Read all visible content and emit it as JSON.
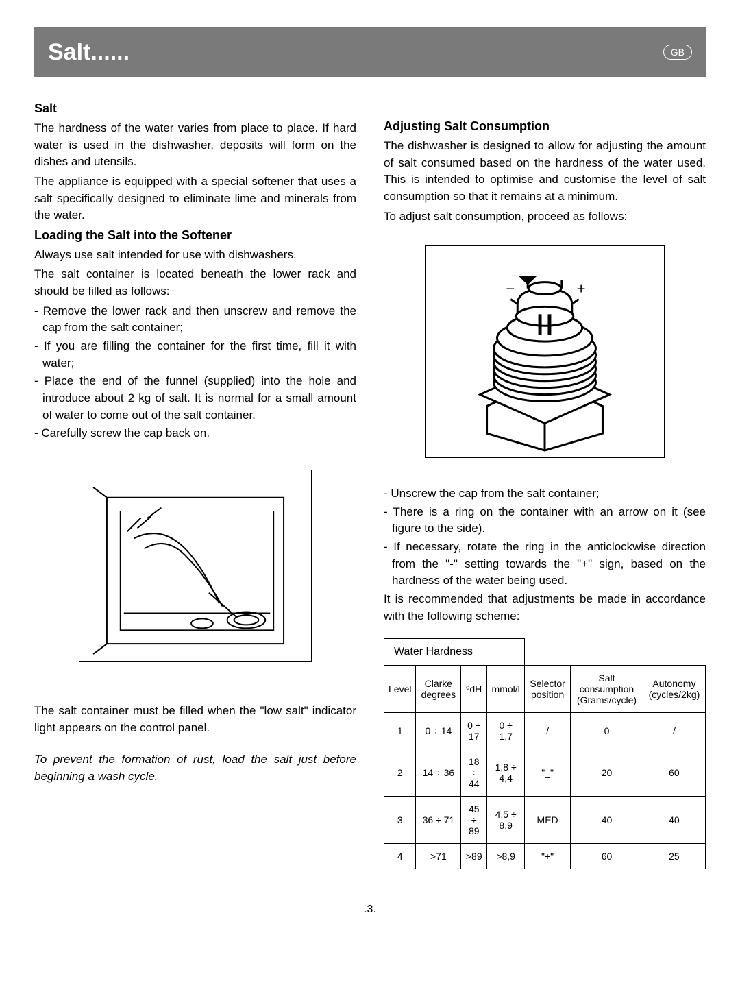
{
  "header": {
    "title": "Salt......",
    "badge": "GB"
  },
  "page_number": ".3.",
  "left": {
    "h1": "Salt",
    "p1": "The hardness of the water varies from place to place. If hard water is used in the dishwasher, deposits will form on the dishes and utensils.",
    "p2": "The appliance is equipped with a special softener that uses a salt specifically designed to eliminate lime and minerals from the water.",
    "h2": "Loading the Salt into the Softener",
    "p3": "Always use salt intended for use with dishwashers.",
    "p4": "The salt container is located beneath the lower rack and should be filled as follows:",
    "li1": "- Remove the lower rack and then unscrew and remove the cap from the salt container;",
    "li2": "- If you are filling the container for the first time, fill it with water;",
    "li3": "- Place the end of the funnel (supplied) into the  hole and introduce about 2 kg of salt. It is normal for a small amount of water to come out of the salt container.",
    "li4": "- Carefully screw the cap back on.",
    "p5": "The salt container must be filled when the \"low salt\" indicator light appears on the control panel.",
    "p6": "To prevent the formation of rust, load the salt just before beginning a wash cycle."
  },
  "right": {
    "h1": "Adjusting Salt Consumption",
    "p1": "The dishwasher is designed to allow for adjusting the amount of salt consumed based on the hardness of the water used. This is intended to optimise and customise the level of salt consumption so that it remains at a minimum.",
    "p2": "To adjust salt consumption, proceed as follows:",
    "li1": "- Unscrew the cap from the salt container;",
    "li2": "- There is a ring on the container with an arrow on it (see figure to the side).",
    "li3": "- If necessary, rotate the ring in the anticlockwise direction from the \"-\" setting towards the \"+\" sign, based on the hardness of the water being used.",
    "p3": "It is recommended that adjustments be made in accordance with the following scheme:"
  },
  "table": {
    "caption": "Water Hardness",
    "columns": {
      "level": "Level",
      "clarke": "Clarke degrees",
      "dh": "ºdH",
      "mmol": "mmol/l",
      "selector": "Selector position",
      "salt": "Salt consumption (Grams/cycle)",
      "autonomy": "Autonomy (cycles/2kg)"
    },
    "rows": [
      {
        "level": "1",
        "clarke": "0 ÷ 14",
        "dh": "0 ÷ 17",
        "mmol": "0 ÷ 1,7",
        "selector": "/",
        "salt": "0",
        "autonomy": "/"
      },
      {
        "level": "2",
        "clarke": "14 ÷ 36",
        "dh": "18 ÷ 44",
        "mmol": "1,8 ÷ 4,4",
        "selector": "\"_\"",
        "salt": "20",
        "autonomy": "60"
      },
      {
        "level": "3",
        "clarke": "36 ÷ 71",
        "dh": "45 ÷ 89",
        "mmol": "4,5 ÷ 8,9",
        "selector": "MED",
        "salt": "40",
        "autonomy": "40"
      },
      {
        "level": "4",
        "clarke": ">71",
        "dh": ">89",
        "mmol": ">8,9",
        "selector": "\"+\"",
        "salt": "60",
        "autonomy": "25"
      }
    ]
  }
}
